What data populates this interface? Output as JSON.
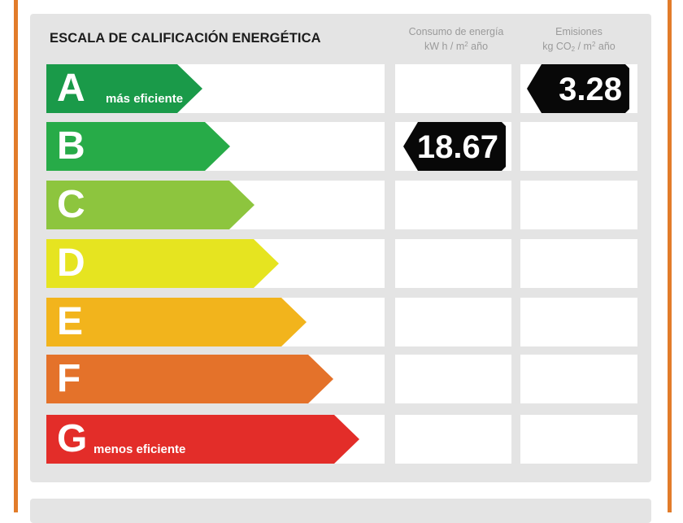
{
  "title": "ESCALA DE CALIFICACIÓN ENERGÉTICA",
  "columns": {
    "consumo": {
      "line1": "Consumo de energía",
      "unit_prefix": "kW h / m",
      "unit_sup": "2",
      "unit_suffix": " año"
    },
    "emisiones": {
      "line1": "Emisiones",
      "unit_prefix": "kg CO",
      "unit_sub": "2",
      "unit_mid": " / m",
      "unit_sup": "2",
      "unit_suffix": " año"
    }
  },
  "ratings": [
    {
      "letter": "A",
      "label": "más eficiente",
      "color": "#1a9a49"
    },
    {
      "letter": "B",
      "label": "",
      "color": "#27ab48"
    },
    {
      "letter": "C",
      "label": "",
      "color": "#8dc53e"
    },
    {
      "letter": "D",
      "label": "",
      "color": "#e6e420"
    },
    {
      "letter": "E",
      "label": "",
      "color": "#f2b41c"
    },
    {
      "letter": "F",
      "label": "",
      "color": "#e4722a"
    },
    {
      "letter": "G",
      "label": "menos eficiente",
      "color": "#e32d29"
    }
  ],
  "consumo_rating": "B",
  "consumo_value": "18.67",
  "emisiones_rating": "A",
  "emisiones_value": "3.28",
  "colors": {
    "frame": "#e27c2a",
    "panel": "#e4e4e4",
    "tag": "#080808"
  }
}
